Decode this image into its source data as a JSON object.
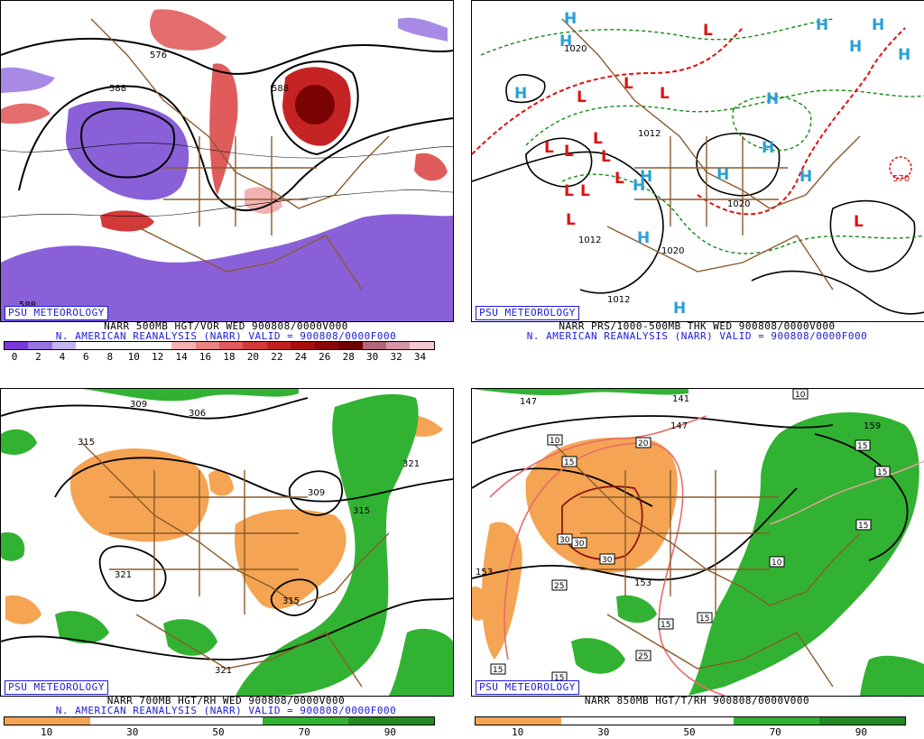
{
  "panels": [
    {
      "id": "p1",
      "badge": "PSU METEOROLOGY",
      "caption_line1": "NARR 500MB HGT/VOR WED 900808/0000V000",
      "caption_line2": "N. AMERICAN REANALYSIS (NARR) VALID = 900808/0000F000",
      "contour_labels": [
        "576",
        "588",
        "588",
        "588"
      ],
      "colorbar_ticks": [
        "0",
        "2",
        "4",
        "6",
        "8",
        "10",
        "12",
        "14",
        "16",
        "18",
        "20",
        "22",
        "24",
        "26",
        "28",
        "30",
        "32",
        "34"
      ],
      "colorbar_colors": [
        "#7a38d8",
        "#9b73e0",
        "#c4b6ee",
        "#ffffff",
        "#ffffff",
        "#ffffff",
        "#ffffff",
        "#f3b2b2",
        "#ea8484",
        "#e05b5b",
        "#d23a3a",
        "#c31f1f",
        "#a80f0f",
        "#8a0606",
        "#6e0000",
        "#b5657a",
        "#d695a5",
        "#f2c8d2"
      ]
    },
    {
      "id": "p2",
      "badge": "PSU METEOROLOGY",
      "caption_line1": "NARR PRS/1000-500MB THK WED 900808/0000V000",
      "caption_line2": "N. AMERICAN REANALYSIS (NARR) VALID = 900808/0000F000",
      "contour_labels": [
        "1020",
        "1012",
        "1012",
        "1020",
        "1020",
        "1012",
        "570"
      ],
      "highs": [
        "H",
        "H",
        "H",
        "H",
        "H",
        "H",
        "H",
        "H",
        "H",
        "H",
        "H",
        "H",
        "H",
        "H",
        "H"
      ],
      "lows": [
        "L",
        "L",
        "L",
        "L",
        "L",
        "L",
        "L",
        "L",
        "L",
        "L",
        "L",
        "L",
        "L"
      ]
    },
    {
      "id": "p3",
      "badge": "PSU METEOROLOGY",
      "caption_line1": "NARR 700MB HGT/RH WED 900808/0000V000",
      "caption_line2": "N. AMERICAN REANALYSIS (NARR) VALID = 900808/0000F000",
      "contour_labels": [
        "309",
        "306",
        "315",
        "321",
        "309",
        "315",
        "321",
        "321",
        "315"
      ],
      "colorbar_ticks": [
        "10",
        "30",
        "50",
        "70",
        "90"
      ],
      "colorbar_colors": [
        "#f4a452",
        "#ffffff",
        "#ffffff",
        "#32b232",
        "#238a23"
      ]
    },
    {
      "id": "p4",
      "badge": "PSU METEOROLOGY",
      "caption_line1": "NARR 850MB HGT/T/RH 900808/0000V000",
      "contour_labels": [
        "147",
        "141",
        "147",
        "153",
        "153",
        "159"
      ],
      "temp_boxes": [
        "10",
        "15",
        "20",
        "30",
        "30",
        "30",
        "25",
        "25",
        "15",
        "15",
        "15",
        "15",
        "15",
        "15",
        "10",
        "10",
        "15"
      ],
      "colorbar_ticks": [
        "10",
        "30",
        "50",
        "70",
        "90"
      ],
      "colorbar_colors": [
        "#f4a452",
        "#ffffff",
        "#ffffff",
        "#32b232",
        "#238a23"
      ]
    }
  ]
}
